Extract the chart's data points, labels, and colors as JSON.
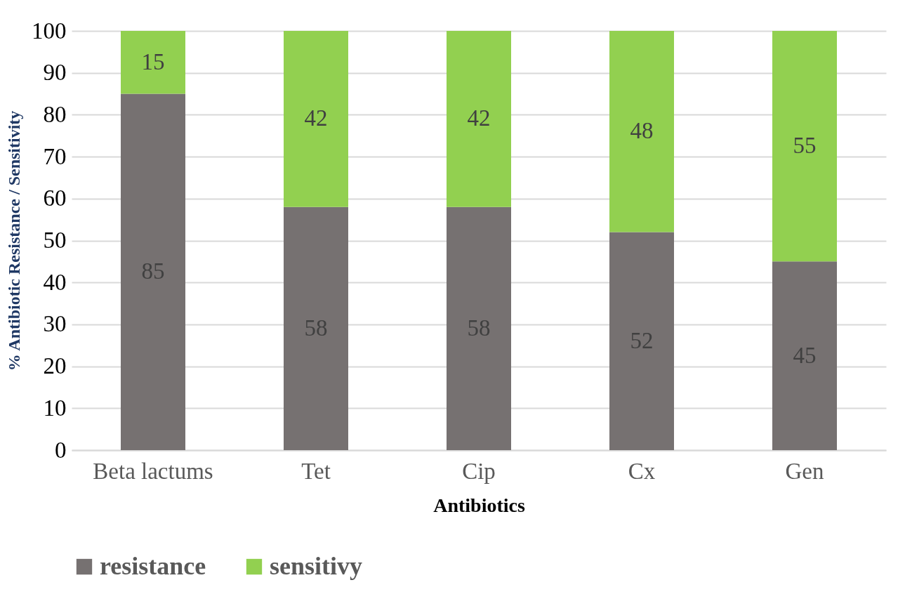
{
  "chart_data": {
    "type": "bar",
    "stacked": true,
    "ylabel": "% Antibiotic Resistance / Sensitivity",
    "xlabel": "Antibiotics",
    "categories": [
      "Beta lactums",
      "Tet",
      "Cip",
      "Cx",
      "Gen"
    ],
    "series": [
      {
        "name": "resistance",
        "color": "#767171",
        "values": [
          85,
          58,
          58,
          52,
          45
        ]
      },
      {
        "name": "sensitivy",
        "color": "#92d050",
        "values": [
          15,
          42,
          42,
          48,
          55
        ]
      }
    ],
    "ylim": [
      0,
      100
    ],
    "yticks": [
      0,
      10,
      20,
      30,
      40,
      50,
      60,
      70,
      80,
      90,
      100
    ],
    "grid": "y",
    "legend": "bottom",
    "data_labels": true
  }
}
